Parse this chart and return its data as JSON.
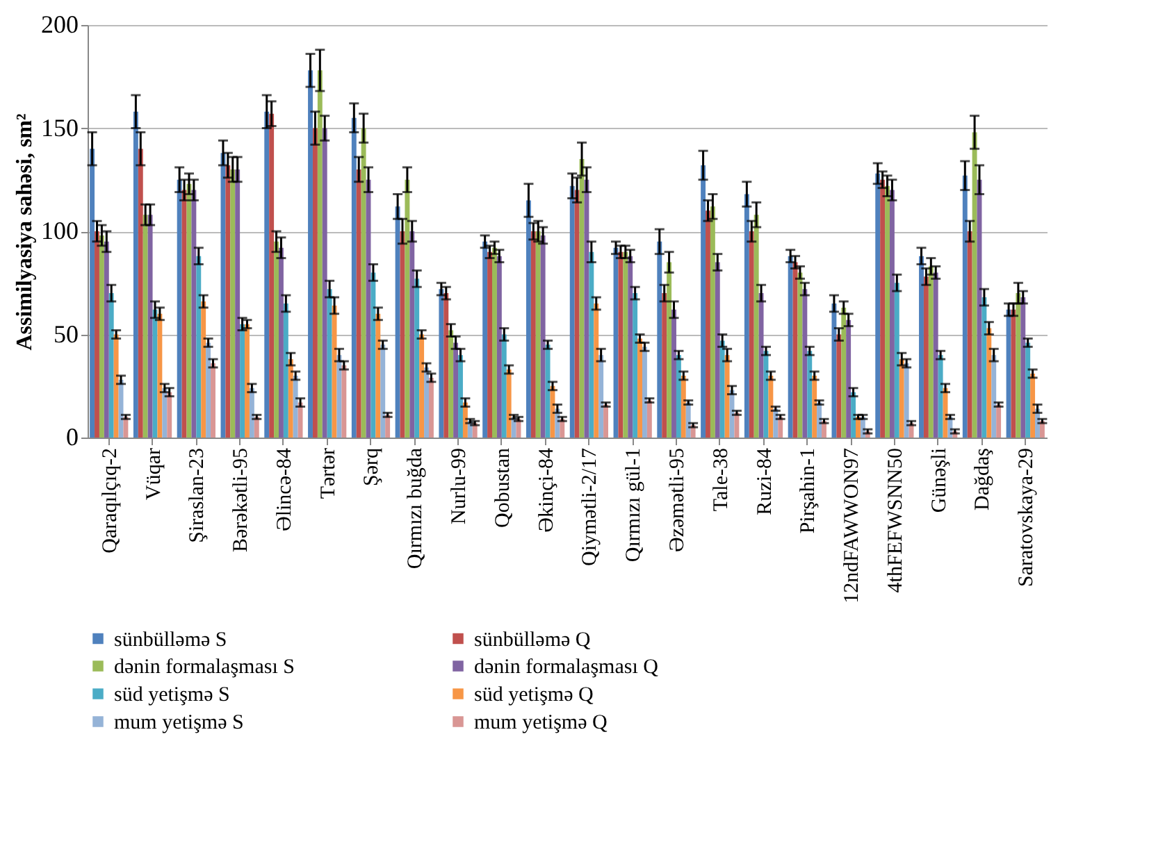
{
  "chart_data": {
    "type": "bar",
    "ylabel": "Assimilyasiya sahəsi, sm²",
    "categories": [
      "Qaraqılçıq-2",
      "Vüqar",
      "Şiraslan-23",
      "Bərəkətli-95",
      "Əlincə-84",
      "Tərtər",
      "Şərq",
      "Qırmızı buğda",
      "Nurlu-99",
      "Qobustan",
      "Əkinçi-84",
      "Qiymətli-2/17",
      "Qırmızı gül-1",
      "Əzəmətli-95",
      "Tale-38",
      "Ruzi-84",
      "Pirşahin-1",
      "12ndFAWWON97",
      "4thFEFWSNN50",
      "Günəşli",
      "Dağdaş",
      "Saratovskaya-29"
    ],
    "series": [
      {
        "name": "sünbülləmə S",
        "color": "#4f81bd",
        "values": [
          140,
          158,
          125,
          138,
          158,
          178,
          155,
          112,
          72,
          95,
          115,
          122,
          92,
          95,
          132,
          118,
          88,
          65,
          128,
          88,
          127,
          62
        ],
        "errors": [
          8,
          8,
          6,
          6,
          8,
          8,
          7,
          6,
          3,
          3,
          8,
          6,
          3,
          6,
          7,
          6,
          3,
          4,
          5,
          4,
          7,
          3
        ]
      },
      {
        "name": "sünbülləmə Q",
        "color": "#c0504d",
        "values": [
          100,
          140,
          120,
          132,
          157,
          150,
          130,
          100,
          70,
          90,
          100,
          120,
          90,
          70,
          110,
          100,
          85,
          50,
          125,
          78,
          100,
          62
        ],
        "errors": [
          5,
          8,
          5,
          6,
          6,
          8,
          6,
          6,
          3,
          3,
          4,
          6,
          3,
          4,
          5,
          5,
          3,
          3,
          4,
          4,
          5,
          3
        ]
      },
      {
        "name": "dənin formalaşması S",
        "color": "#9bbb59",
        "values": [
          98,
          108,
          123,
          130,
          95,
          178,
          150,
          125,
          52,
          92,
          100,
          135,
          90,
          85,
          112,
          108,
          80,
          63,
          122,
          83,
          148,
          70
        ],
        "errors": [
          5,
          5,
          5,
          6,
          5,
          10,
          7,
          6,
          3,
          3,
          5,
          8,
          3,
          5,
          6,
          6,
          3,
          3,
          5,
          4,
          8,
          5
        ]
      },
      {
        "name": "dənin formalaşması Q",
        "color": "#8064a2",
        "values": [
          95,
          108,
          120,
          130,
          92,
          150,
          125,
          100,
          46,
          88,
          98,
          125,
          88,
          62,
          85,
          70,
          72,
          57,
          120,
          80,
          125,
          68
        ],
        "errors": [
          5,
          5,
          5,
          6,
          5,
          6,
          6,
          5,
          3,
          3,
          4,
          6,
          3,
          4,
          4,
          4,
          3,
          3,
          5,
          3,
          7,
          3
        ]
      },
      {
        "name": "süd yetişmə S",
        "color": "#4bacc6",
        "values": [
          70,
          62,
          88,
          55,
          65,
          72,
          80,
          77,
          40,
          50,
          45,
          90,
          70,
          40,
          47,
          42,
          42,
          22,
          75,
          40,
          68,
          46
        ],
        "errors": [
          4,
          4,
          4,
          3,
          4,
          4,
          4,
          4,
          3,
          3,
          2,
          5,
          3,
          2,
          3,
          2,
          2,
          2,
          4,
          2,
          4,
          2
        ]
      },
      {
        "name": "süd yetişmə Q",
        "color": "#f79646",
        "values": [
          50,
          60,
          66,
          55,
          38,
          64,
          60,
          50,
          17,
          33,
          25,
          65,
          48,
          30,
          40,
          30,
          30,
          10,
          38,
          24,
          53,
          31
        ],
        "errors": [
          2,
          3,
          3,
          2,
          3,
          4,
          3,
          2,
          2,
          2,
          2,
          3,
          2,
          2,
          3,
          2,
          2,
          1,
          3,
          2,
          3,
          2
        ]
      },
      {
        "name": "mum yetişmə S",
        "color": "#95b3d7",
        "values": [
          28,
          24,
          46,
          24,
          30,
          40,
          45,
          34,
          8,
          10,
          14,
          40,
          44,
          17,
          23,
          14,
          17,
          10,
          36,
          10,
          40,
          14
        ],
        "errors": [
          2,
          2,
          2,
          2,
          2,
          3,
          2,
          2,
          1,
          1,
          2,
          3,
          2,
          1,
          2,
          1,
          1,
          1,
          2,
          1,
          3,
          2
        ]
      },
      {
        "name": "mum yetişmə Q",
        "color": "#d99694",
        "values": [
          10,
          22,
          36,
          10,
          17,
          35,
          11,
          29,
          7,
          9,
          9,
          16,
          18,
          6,
          12,
          10,
          8,
          3,
          7,
          3,
          16,
          8
        ],
        "errors": [
          1,
          2,
          2,
          1,
          2,
          2,
          1,
          2,
          1,
          1,
          1,
          1,
          1,
          1,
          1,
          1,
          1,
          1,
          1,
          1,
          1,
          1
        ]
      }
    ],
    "ylim": [
      0,
      200
    ],
    "yticks": [
      0,
      50,
      100,
      150,
      200
    ],
    "grid": "y",
    "legend": "bottom"
  }
}
